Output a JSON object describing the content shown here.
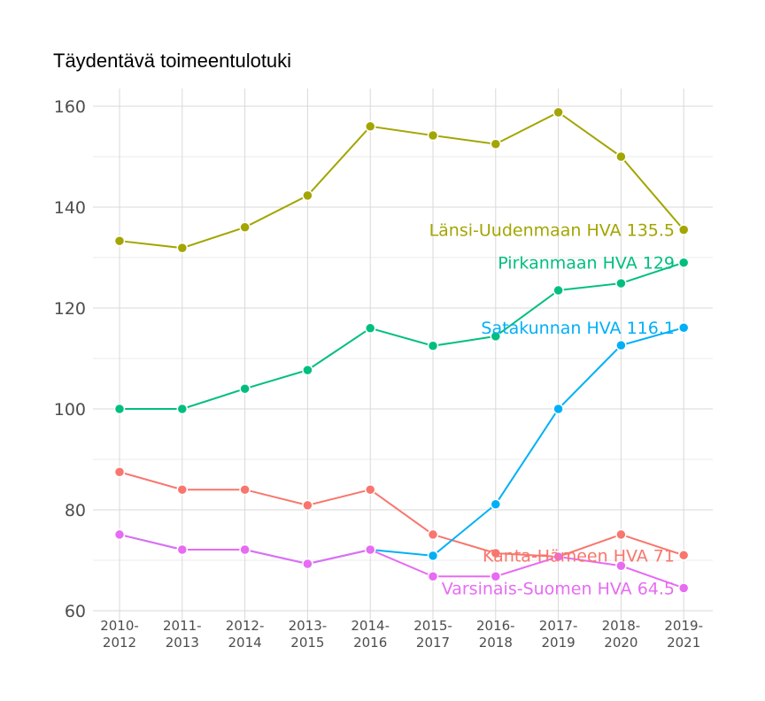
{
  "chart_data": {
    "type": "line",
    "title": "Täydentävä toimeentulotuki",
    "xlabel": "",
    "ylabel": "",
    "categories": [
      "2010-2012",
      "2011-2013",
      "2012-2014",
      "2013-2015",
      "2014-2016",
      "2015-2017",
      "2016-2018",
      "2017-2019",
      "2018-2020",
      "2019-2021"
    ],
    "ylim": [
      60,
      163
    ],
    "yticks": [
      60,
      80,
      100,
      120,
      140,
      160
    ],
    "grid": true,
    "legend": "none (direct labels at line ends)",
    "series": [
      {
        "name": "Länsi-Uudenmaan HVA",
        "end_label": "Länsi-Uudenmaan HVA 135.5",
        "color": "#A3A500",
        "values": [
          133.3,
          131.9,
          136.0,
          142.3,
          156.0,
          154.2,
          152.5,
          158.8,
          150.0,
          135.5
        ]
      },
      {
        "name": "Pirkanmaan HVA",
        "end_label": "Pirkanmaan HVA 129",
        "color": "#00BF7D",
        "values": [
          100.0,
          100.0,
          104.0,
          107.7,
          116.0,
          112.5,
          114.4,
          123.5,
          124.9,
          129.0
        ]
      },
      {
        "name": "Satakunnan HVA",
        "end_label": "Satakunnan HVA 116.1",
        "color": "#00B0F6",
        "values": [
          75.1,
          72.1,
          72.1,
          69.3,
          72.1,
          70.9,
          81.1,
          100.0,
          112.6,
          116.1
        ]
      },
      {
        "name": "Kanta-Hämeen HVA",
        "end_label": "Kanta-Hämeen HVA 71",
        "color": "#F8766D",
        "values": [
          87.5,
          84.0,
          84.0,
          80.9,
          84.0,
          75.1,
          71.4,
          70.7,
          75.1,
          71.0
        ]
      },
      {
        "name": "Varsinais-Suomen HVA",
        "end_label": "Varsinais-Suomen HVA 64.5",
        "color": "#E76BF3",
        "values": [
          75.1,
          72.1,
          72.1,
          69.3,
          72.1,
          66.8,
          66.8,
          70.7,
          68.9,
          64.5
        ]
      }
    ]
  }
}
